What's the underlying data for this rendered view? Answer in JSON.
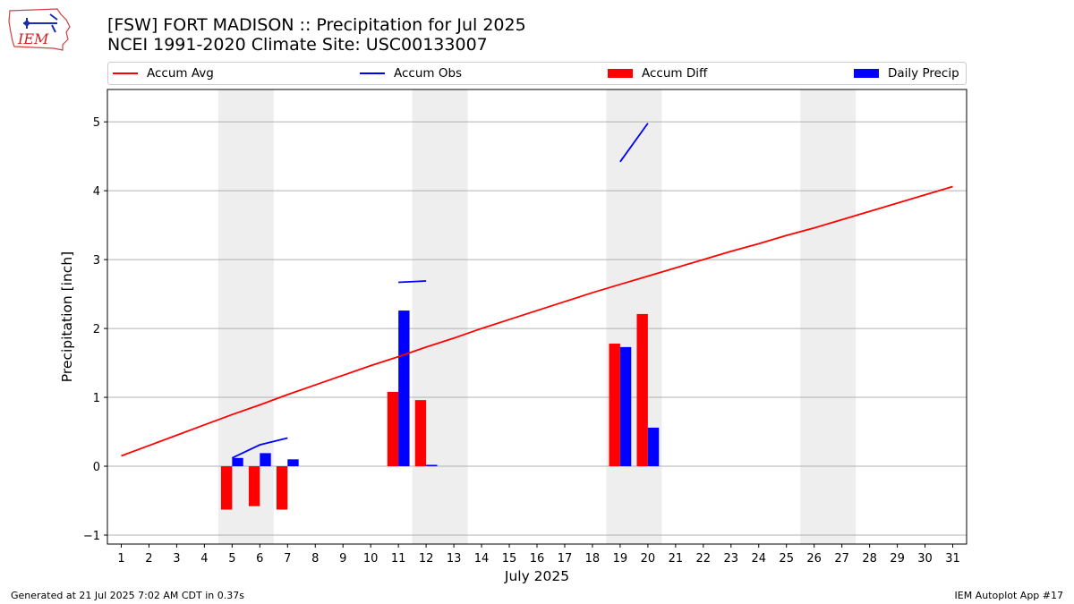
{
  "header": {
    "title_line1": "[FSW] FORT MADISON :: Precipitation for Jul 2025",
    "title_line2": "NCEI 1991-2020 Climate Site: USC00133007",
    "logo_text": "IEM"
  },
  "footer": {
    "generated": "Generated at 21 Jul 2025 7:02 AM CDT in 0.37s",
    "app": "IEM Autoplot App #17"
  },
  "colors": {
    "avg": "#ff0000",
    "obs": "#0000ff",
    "diff": "#ff0000",
    "daily": "#0000ff",
    "weekend_shade": "#eeeeee",
    "grid": "#b0b0b0"
  },
  "chart_data": {
    "type": "bar",
    "xlabel": "July 2025",
    "ylabel": "Precipitation [inch]",
    "xlim": [
      0.5,
      31.5
    ],
    "ylim": [
      -1.13,
      5.47
    ],
    "yticks": [
      -1,
      0,
      1,
      2,
      3,
      4,
      5
    ],
    "xticks": [
      1,
      2,
      3,
      4,
      5,
      6,
      7,
      8,
      9,
      10,
      11,
      12,
      13,
      14,
      15,
      16,
      17,
      18,
      19,
      20,
      21,
      22,
      23,
      24,
      25,
      26,
      27,
      28,
      29,
      30,
      31
    ],
    "grid": "horizontal",
    "legend": {
      "placement": "top",
      "entries": [
        {
          "label": "Accum Avg",
          "kind": "line",
          "color": "#ff0000"
        },
        {
          "label": "Accum Obs",
          "kind": "line",
          "color": "#0000ff"
        },
        {
          "label": "Accum Diff",
          "kind": "bar",
          "color": "#ff0000"
        },
        {
          "label": "Daily Precip",
          "kind": "bar",
          "color": "#0000ff"
        }
      ]
    },
    "weekends": [
      [
        5,
        6
      ],
      [
        12,
        13
      ],
      [
        19,
        20
      ],
      [
        26,
        27
      ]
    ],
    "series": [
      {
        "name": "Accum Avg",
        "kind": "line",
        "x": [
          1,
          2,
          3,
          4,
          5,
          6,
          7,
          8,
          9,
          10,
          11,
          12,
          13,
          14,
          15,
          16,
          17,
          18,
          19,
          20,
          21,
          22,
          23,
          24,
          25,
          26,
          27,
          28,
          29,
          30,
          31
        ],
        "values": [
          0.15,
          0.3,
          0.45,
          0.6,
          0.75,
          0.89,
          1.04,
          1.18,
          1.32,
          1.46,
          1.59,
          1.73,
          1.86,
          2.0,
          2.13,
          2.26,
          2.39,
          2.52,
          2.64,
          2.76,
          2.88,
          3.0,
          3.12,
          3.23,
          3.35,
          3.46,
          3.58,
          3.7,
          3.82,
          3.94,
          4.06
        ]
      },
      {
        "name": "Accum Obs",
        "kind": "line",
        "segments": [
          {
            "x": [
              5,
              6,
              7
            ],
            "values": [
              0.12,
              0.31,
              0.41
            ]
          },
          {
            "x": [
              11,
              12
            ],
            "values": [
              2.67,
              2.69
            ]
          },
          {
            "x": [
              19,
              20
            ],
            "values": [
              4.42,
              4.98
            ]
          }
        ]
      },
      {
        "name": "Accum Diff",
        "kind": "bar",
        "x": [
          5,
          6,
          7,
          11,
          12,
          19,
          20
        ],
        "values": [
          -0.63,
          -0.58,
          -0.63,
          1.08,
          0.96,
          1.78,
          2.21
        ]
      },
      {
        "name": "Daily Precip",
        "kind": "bar",
        "x": [
          5,
          6,
          7,
          11,
          12,
          19,
          20
        ],
        "values": [
          0.12,
          0.19,
          0.1,
          2.26,
          0.02,
          1.73,
          0.56
        ]
      }
    ]
  }
}
